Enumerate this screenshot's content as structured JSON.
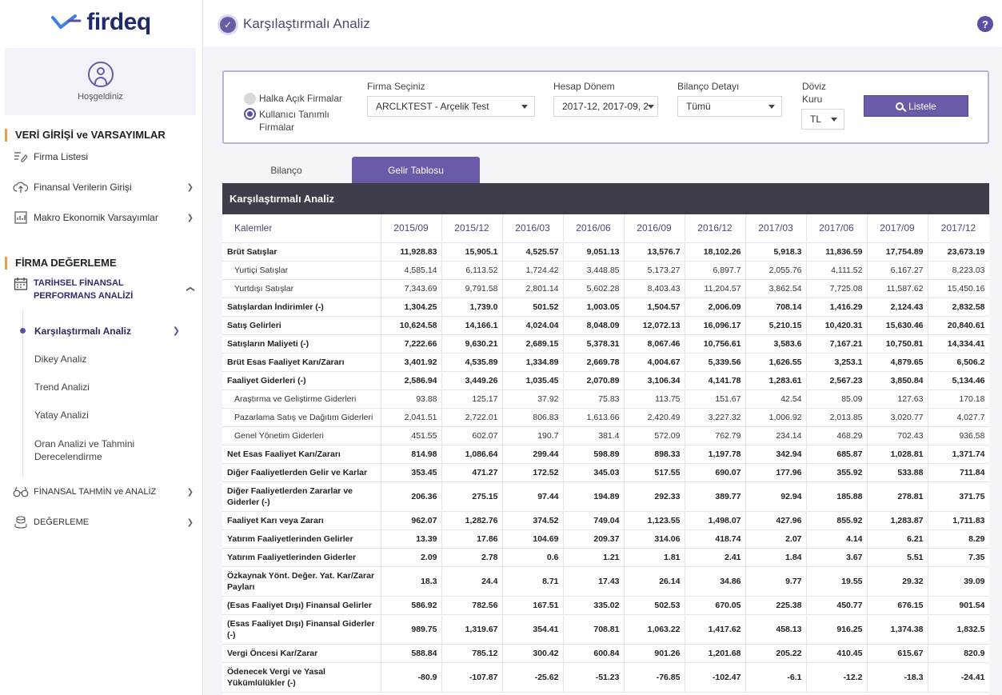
{
  "brand": {
    "name": "firdeq"
  },
  "sidebar": {
    "welcome": "Hoşgeldiniz",
    "sections": [
      {
        "title": "VERİ GİRİŞİ ve VARSAYIMLAR"
      },
      {
        "title": "FİRMA DEĞERLEME"
      }
    ],
    "items": [
      {
        "label": "Firma Listesi",
        "icon": "list-edit-icon"
      },
      {
        "label": "Finansal Verilerin Girişi",
        "icon": "cloud-upload-icon"
      },
      {
        "label": "Makro Ekonomik Varsayımlar",
        "icon": "chart-doc-icon"
      },
      {
        "label": "TARİHSEL FİNANSAL PERFORMANS ANALİZİ",
        "icon": "calendar-icon"
      },
      {
        "label": "FİNANSAL TAHMİN ve ANALİZ",
        "icon": "binoculars-icon"
      },
      {
        "label": "DEĞERLEME",
        "icon": "coins-icon"
      }
    ],
    "subitems": [
      {
        "label": "Karşılaştırmalı Analiz"
      },
      {
        "label": "Dikey Analiz"
      },
      {
        "label": "Trend Analizi"
      },
      {
        "label": "Yatay Analizi"
      },
      {
        "label": "Oran Analizi ve Tahmini Derecelendirme"
      }
    ]
  },
  "header": {
    "title": "Karşılaştırmalı Analiz"
  },
  "filter": {
    "radio_public": "Halka Açık Firmalar",
    "radio_user": "Kullanıcı Tanımlı Firmalar",
    "firm_label": "Firma Seçiniz",
    "firm_value": "ARCLKTEST - Arçelik Test",
    "period_label": "Hesap Dönem",
    "period_value": "2017-12, 2017-09, 2",
    "detail_label": "Bilanço Detayı",
    "detail_value": "Tümü",
    "currency_label": "Döviz Kuru",
    "currency_value": "TL",
    "list_button": "Listele"
  },
  "tabs": [
    {
      "label": "Bilanço"
    },
    {
      "label": "Gelir Tablosu"
    }
  ],
  "table": {
    "title": "Karşılaştırmalı Analiz",
    "columns": [
      "Kalemler",
      "2015/09",
      "2015/12",
      "2016/03",
      "2016/06",
      "2016/09",
      "2016/12",
      "2017/03",
      "2017/06",
      "2017/09",
      "2017/12"
    ],
    "rows": [
      {
        "label": "Brüt Satışlar",
        "bold": true,
        "values": [
          "11,928.83",
          "15,905.1",
          "4,525.57",
          "9,051.13",
          "13,576.7",
          "18,102.26",
          "5,918.3",
          "11,836.59",
          "17,754.89",
          "23,673.19"
        ]
      },
      {
        "label": "Yurtiçi Satışlar",
        "bold": false,
        "values": [
          "4,585.14",
          "6,113.52",
          "1,724.42",
          "3,448.85",
          "5,173.27",
          "6,897.7",
          "2,055.76",
          "4,111.52",
          "6,167.27",
          "8,223.03"
        ]
      },
      {
        "label": "Yurtdışı Satışlar",
        "bold": false,
        "values": [
          "7,343.69",
          "9,791.58",
          "2,801.14",
          "5,602.28",
          "8,403.43",
          "11,204.57",
          "3,862.54",
          "7,725.08",
          "11,587.62",
          "15,450.16"
        ]
      },
      {
        "label": "Satışlardan İndirimler (-)",
        "bold": true,
        "values": [
          "1,304.25",
          "1,739.0",
          "501.52",
          "1,003.05",
          "1,504.57",
          "2,006.09",
          "708.14",
          "1,416.29",
          "2,124.43",
          "2,832.58"
        ]
      },
      {
        "label": "Satış Gelirleri",
        "bold": true,
        "values": [
          "10,624.58",
          "14,166.1",
          "4,024.04",
          "8,048.09",
          "12,072.13",
          "16,096.17",
          "5,210.15",
          "10,420.31",
          "15,630.46",
          "20,840.61"
        ]
      },
      {
        "label": "Satışların Maliyeti (-)",
        "bold": true,
        "values": [
          "7,222.66",
          "9,630.21",
          "2,689.15",
          "5,378.31",
          "8,067.46",
          "10,756.61",
          "3,583.6",
          "7,167.21",
          "10,750.81",
          "14,334.41"
        ]
      },
      {
        "label": "Brüt Esas Faaliyet Karı/Zararı",
        "bold": true,
        "values": [
          "3,401.92",
          "4,535.89",
          "1,334.89",
          "2,669.78",
          "4,004.67",
          "5,339.56",
          "1,626.55",
          "3,253.1",
          "4,879.65",
          "6,506.2"
        ]
      },
      {
        "label": "Faaliyet Giderleri (-)",
        "bold": true,
        "values": [
          "2,586.94",
          "3,449.26",
          "1,035.45",
          "2,070.89",
          "3,106.34",
          "4,141.78",
          "1,283.61",
          "2,567.23",
          "3,850.84",
          "5,134.46"
        ]
      },
      {
        "label": "Araştırma ve Geliştirme Giderleri",
        "bold": false,
        "values": [
          "93.88",
          "125.17",
          "37.92",
          "75.83",
          "113.75",
          "151.67",
          "42.54",
          "85.09",
          "127.63",
          "170.18"
        ]
      },
      {
        "label": "Pazarlama Satış ve Dağıtım Giderleri",
        "bold": false,
        "values": [
          "2,041.51",
          "2,722.01",
          "806.83",
          "1,613.66",
          "2,420.49",
          "3,227.32",
          "1,006.92",
          "2,013.85",
          "3,020.77",
          "4,027.7"
        ]
      },
      {
        "label": "Genel Yönetim Giderleri",
        "bold": false,
        "values": [
          "451.55",
          "602.07",
          "190.7",
          "381.4",
          "572.09",
          "762.79",
          "234.14",
          "468.29",
          "702.43",
          "936.58"
        ]
      },
      {
        "label": "Net Esas Faaliyet Karı/Zararı",
        "bold": true,
        "values": [
          "814.98",
          "1,086.64",
          "299.44",
          "598.89",
          "898.33",
          "1,197.78",
          "342.94",
          "685.87",
          "1,028.81",
          "1,371.74"
        ]
      },
      {
        "label": "Diğer Faaliyetlerden Gelir ve Karlar",
        "bold": true,
        "values": [
          "353.45",
          "471.27",
          "172.52",
          "345.03",
          "517.55",
          "690.07",
          "177.96",
          "355.92",
          "533.88",
          "711.84"
        ]
      },
      {
        "label": "Diğer Faaliyetlerden Zararlar ve Giderler (-)",
        "bold": true,
        "values": [
          "206.36",
          "275.15",
          "97.44",
          "194.89",
          "292.33",
          "389.77",
          "92.94",
          "185.88",
          "278.81",
          "371.75"
        ]
      },
      {
        "label": "Faaliyet Karı veya Zararı",
        "bold": true,
        "values": [
          "962.07",
          "1,282.76",
          "374.52",
          "749.04",
          "1,123.55",
          "1,498.07",
          "427.96",
          "855.92",
          "1,283.87",
          "1,711.83"
        ]
      },
      {
        "label": "Yatırım Faaliyetlerinden Gelirler",
        "bold": true,
        "values": [
          "13.39",
          "17.86",
          "104.69",
          "209.37",
          "314.06",
          "418.74",
          "2.07",
          "4.14",
          "6.21",
          "8.29"
        ]
      },
      {
        "label": "Yatırım Faaliyetlerinden Giderler",
        "bold": true,
        "values": [
          "2.09",
          "2.78",
          "0.6",
          "1.21",
          "1.81",
          "2.41",
          "1.84",
          "3.67",
          "5.51",
          "7.35"
        ]
      },
      {
        "label": "Özkaynak Yönt. Değer. Yat. Kar/Zarar Payları",
        "bold": true,
        "values": [
          "18.3",
          "24.4",
          "8.71",
          "17.43",
          "26.14",
          "34.86",
          "9.77",
          "19.55",
          "29.32",
          "39.09"
        ]
      },
      {
        "label": "(Esas Faaliyet Dışı) Finansal Gelirler",
        "bold": true,
        "values": [
          "586.92",
          "782.56",
          "167.51",
          "335.02",
          "502.53",
          "670.05",
          "225.38",
          "450.77",
          "676.15",
          "901.54"
        ]
      },
      {
        "label": "(Esas Faaliyet Dışı) Finansal Giderler (-)",
        "bold": true,
        "values": [
          "989.75",
          "1,319.67",
          "354.41",
          "708.81",
          "1,063.22",
          "1,417.62",
          "458.13",
          "916.25",
          "1,374.38",
          "1,832.5"
        ]
      },
      {
        "label": "Vergi Öncesi Kar/Zarar",
        "bold": true,
        "values": [
          "588.84",
          "785.12",
          "300.42",
          "600.84",
          "901.26",
          "1,201.68",
          "205.22",
          "410.45",
          "615.67",
          "820.9"
        ]
      },
      {
        "label": "Ödenecek Vergi ve Yasal Yükümlülükler (-)",
        "bold": true,
        "values": [
          "-80.9",
          "-107.87",
          "-25.62",
          "-51.23",
          "-76.85",
          "-102.47",
          "-6.1",
          "-12.2",
          "-18.3",
          "-24.41"
        ]
      }
    ]
  }
}
